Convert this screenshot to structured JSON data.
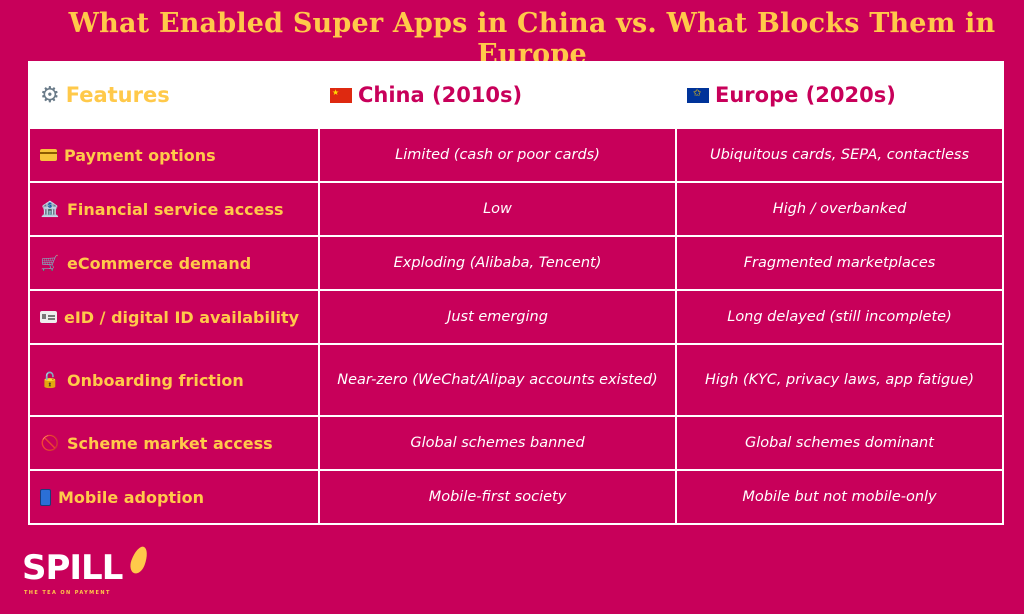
{
  "title": "What Enabled Super Apps in China vs. What Blocks Them in Europe",
  "headers": {
    "features": {
      "label": "Features",
      "icon": "gear-icon"
    },
    "china": {
      "label": "China (2010s)",
      "icon": "china-flag-icon"
    },
    "europe": {
      "label": "Europe (2020s)",
      "icon": "eu-flag-icon"
    }
  },
  "rows": [
    {
      "feature": "Payment options",
      "icon": "credit-card-icon",
      "china": "Limited (cash or poor cards)",
      "europe": "Ubiquitous cards, SEPA, contactless"
    },
    {
      "feature": "Financial service access",
      "icon": "bank-icon",
      "china": "Low",
      "europe": "High / overbanked"
    },
    {
      "feature": "eCommerce demand",
      "icon": "shopping-cart-icon",
      "china": "Exploding (Alibaba, Tencent)",
      "europe": "Fragmented marketplaces"
    },
    {
      "feature": "eID / digital ID availability",
      "icon": "id-card-icon",
      "china": "Just emerging",
      "europe": "Long delayed (still incomplete)"
    },
    {
      "feature": "Onboarding friction",
      "icon": "unlocked-padlock-icon",
      "china": "Near-zero (WeChat/Alipay accounts existed)",
      "europe": "High (KYC, privacy laws, app fatigue)"
    },
    {
      "feature": "Scheme market access",
      "icon": "prohibited-icon",
      "china": "Global schemes banned",
      "europe": "Global schemes dominant"
    },
    {
      "feature": "Mobile adoption",
      "icon": "mobile-phone-icon",
      "china": "Mobile-first society",
      "europe": "Mobile but not mobile-only"
    }
  ],
  "logo": {
    "name": "SPILL",
    "tagline": "THE TEA ON PAYMENT"
  },
  "colors": {
    "background": "#c8005a",
    "accent": "#ffc94a",
    "header_bg": "#ffffff"
  }
}
